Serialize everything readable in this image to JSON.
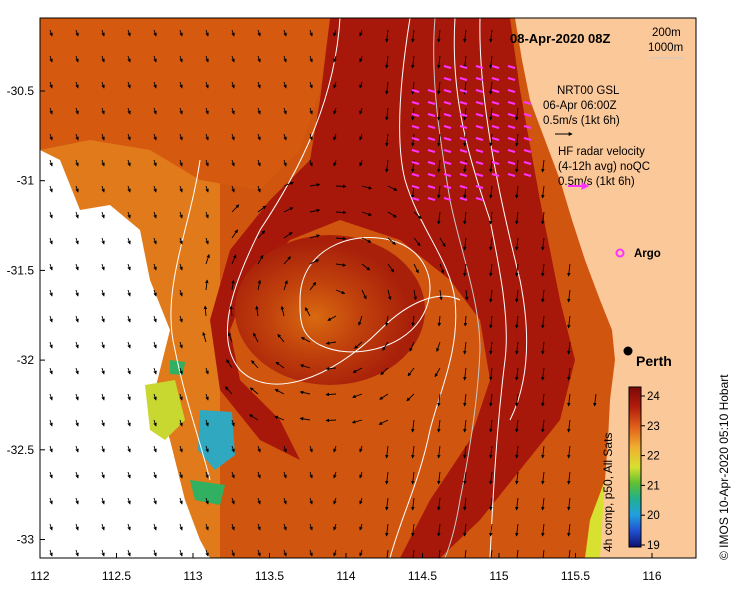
{
  "map": {
    "title": "08-Apr-2020 08Z",
    "credit": "© IMOS 10-Apr-2020 05:10 Hobart",
    "colorbar_label": "4h comp, p50, All Sats",
    "x_ticks": [
      "112",
      "112.5",
      "113",
      "113.5",
      "114",
      "114.5",
      "115",
      "115.5",
      "116"
    ],
    "y_ticks": [
      "-30.5",
      "-31",
      "-31.5",
      "-32",
      "-32.5",
      "-33"
    ],
    "colorbar_ticks": [
      "24",
      "23",
      "22",
      "21",
      "20",
      "19"
    ],
    "depth_legend": {
      "line1": "200m",
      "line2": "1000m"
    },
    "gsl_legend": {
      "line1": "NRT00 GSL",
      "line2": "06-Apr 06:00Z",
      "line3": "0.5m/s (1kt 6h)"
    },
    "radar_legend": {
      "line1": "HF radar velocity",
      "line2": "(4-12h avg) noQC",
      "line3": "0.5m/s (1kt 6h)"
    },
    "argo_label": "Argo",
    "city_label": "Perth",
    "colors": {
      "land": "#fbc89a",
      "sst_warm": "#a8120a",
      "sst_mid": "#d0560f",
      "sst_cool": "#e68a1c",
      "radar_arrow": "#ff33ff",
      "contour": "#ffffff"
    }
  }
}
